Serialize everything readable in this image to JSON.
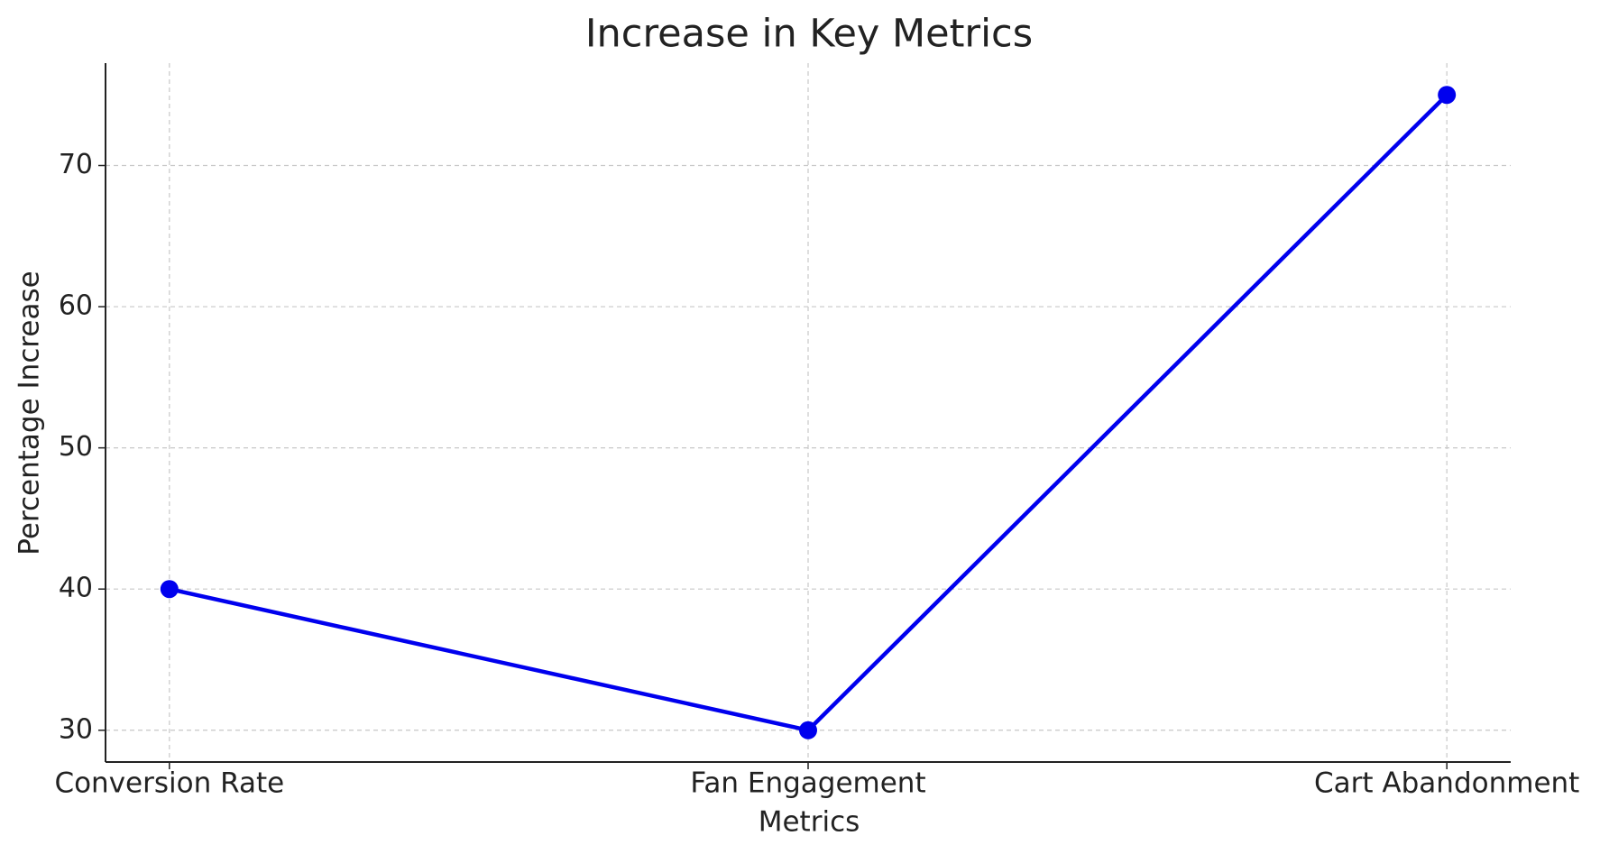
{
  "chart_data": {
    "type": "line",
    "title": "Increase in Key Metrics",
    "x_label": "Metrics",
    "y_label": "Percentage Increase",
    "categories": [
      "Conversion Rate",
      "Fan Engagement",
      "Cart Abandonment"
    ],
    "series": [
      {
        "name": "Percentage Increase",
        "color": "#0000ee",
        "values": [
          40,
          30,
          75
        ]
      }
    ],
    "ylim": [
      27.75,
      77.25
    ],
    "yticks": [
      30,
      40,
      50,
      60,
      70
    ],
    "grid": true
  }
}
